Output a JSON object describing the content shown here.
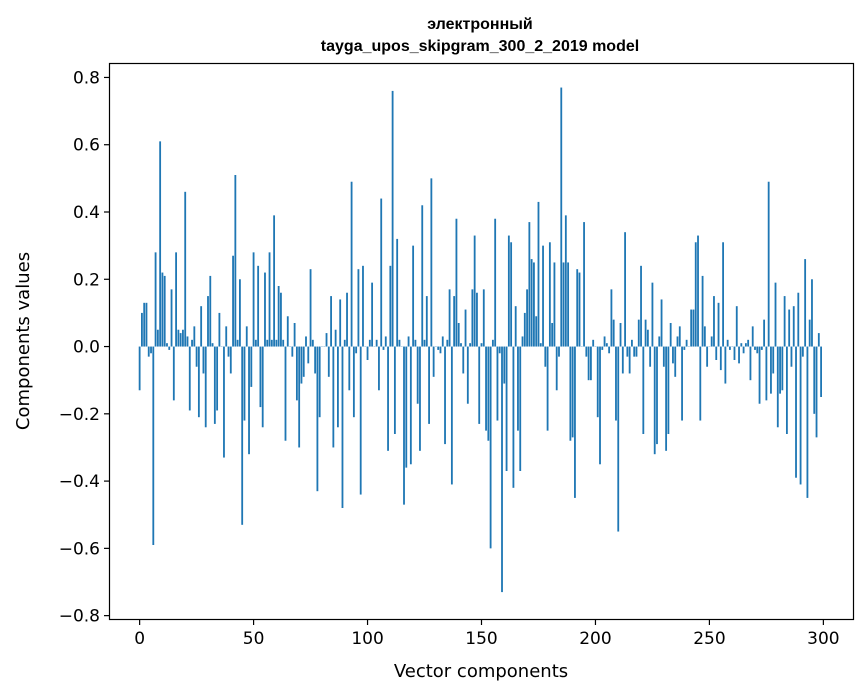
{
  "chart_data": {
    "type": "bar",
    "title": "электронный",
    "subtitle": "tayga_upos_skipgram_300_2_2019 model",
    "xlabel": "Vector components",
    "ylabel": "Components values",
    "xlim": [
      -13,
      313
    ],
    "ylim": [
      -0.81,
      0.84
    ],
    "xticks": [
      0,
      50,
      100,
      150,
      200,
      250,
      300
    ],
    "xtick_labels": [
      "0",
      "50",
      "100",
      "150",
      "200",
      "250",
      "300"
    ],
    "yticks": [
      -0.8,
      -0.6,
      -0.4,
      -0.2,
      0.0,
      0.2,
      0.4,
      0.6,
      0.8
    ],
    "ytick_labels": [
      "−0.8",
      "−0.6",
      "−0.4",
      "−0.2",
      "0.0",
      "0.2",
      "0.4",
      "0.6",
      "0.8"
    ],
    "grid": false,
    "bar_color": "#1f77b4",
    "values": [
      -0.13,
      0.1,
      0.13,
      0.13,
      -0.03,
      -0.02,
      -0.59,
      0.28,
      0.05,
      0.61,
      0.22,
      0.21,
      0.01,
      -0.01,
      0.17,
      -0.16,
      0.28,
      0.05,
      0.04,
      0.05,
      0.46,
      0.03,
      -0.19,
      0.02,
      0.06,
      -0.06,
      -0.21,
      0.12,
      -0.08,
      -0.24,
      0.15,
      0.21,
      0.01,
      -0.23,
      -0.19,
      0.1,
      0.0,
      -0.33,
      0.06,
      -0.03,
      -0.08,
      0.27,
      0.51,
      0.02,
      0.2,
      -0.53,
      -0.22,
      0.06,
      -0.32,
      -0.12,
      0.28,
      0.02,
      0.24,
      -0.18,
      -0.24,
      0.22,
      0.02,
      0.28,
      0.02,
      0.39,
      0.02,
      0.18,
      0.16,
      0.02,
      -0.28,
      0.09,
      0.0,
      -0.03,
      0.07,
      -0.16,
      -0.3,
      -0.11,
      -0.09,
      0.03,
      -0.05,
      0.23,
      0.02,
      -0.08,
      -0.43,
      -0.21,
      0.0,
      0.0,
      0.04,
      -0.09,
      0.15,
      -0.3,
      0.05,
      -0.24,
      0.14,
      -0.48,
      0.02,
      0.16,
      -0.13,
      0.49,
      -0.21,
      -0.02,
      0.23,
      -0.44,
      0.24,
      0.0,
      -0.04,
      0.02,
      0.19,
      0.0,
      0.02,
      -0.13,
      0.44,
      -0.01,
      0.03,
      -0.31,
      0.24,
      0.76,
      -0.26,
      0.32,
      0.02,
      0.0,
      -0.47,
      -0.36,
      0.03,
      -0.35,
      0.3,
      0.02,
      -0.17,
      -0.31,
      0.42,
      0.02,
      0.15,
      -0.23,
      0.5,
      -0.09,
      0.0,
      -0.01,
      -0.02,
      0.03,
      -0.29,
      0.02,
      0.17,
      -0.41,
      0.15,
      0.38,
      0.07,
      0.01,
      -0.08,
      0.11,
      -0.17,
      0.01,
      0.17,
      0.33,
      0.16,
      -0.23,
      0.01,
      0.17,
      -0.25,
      -0.28,
      -0.6,
      0.02,
      0.38,
      -0.22,
      -0.02,
      -0.73,
      -0.11,
      -0.37,
      0.33,
      0.31,
      -0.42,
      0.12,
      -0.25,
      -0.37,
      0.03,
      0.1,
      0.17,
      0.37,
      0.26,
      0.25,
      0.09,
      0.43,
      0.01,
      0.3,
      -0.06,
      -0.25,
      0.31,
      0.07,
      0.25,
      -0.13,
      -0.03,
      0.77,
      0.25,
      0.39,
      0.25,
      -0.28,
      -0.27,
      -0.45,
      0.23,
      0.22,
      0.0,
      0.37,
      -0.03,
      -0.1,
      -0.1,
      0.02,
      0.0,
      -0.21,
      -0.35,
      -0.01,
      0.03,
      0.01,
      -0.02,
      0.17,
      0.08,
      -0.22,
      -0.55,
      0.07,
      -0.08,
      0.34,
      -0.03,
      -0.08,
      0.02,
      -0.03,
      -0.03,
      0.08,
      0.24,
      -0.26,
      0.08,
      0.05,
      -0.06,
      0.19,
      -0.32,
      -0.29,
      0.03,
      0.14,
      -0.06,
      -0.31,
      -0.26,
      0.07,
      -0.05,
      -0.09,
      0.03,
      0.06,
      -0.22,
      -0.01,
      0.02,
      0.0,
      0.11,
      0.11,
      0.31,
      0.33,
      -0.22,
      0.21,
      0.06,
      -0.06,
      0.0,
      0.03,
      0.15,
      -0.04,
      0.13,
      -0.07,
      0.31,
      -0.11,
      0.02,
      -0.01,
      0.0,
      -0.04,
      0.12,
      -0.05,
      0.01,
      -0.02,
      0.01,
      0.02,
      -0.1,
      0.06,
      -0.01,
      -0.02,
      -0.17,
      -0.01,
      0.08,
      -0.16,
      0.49,
      -0.14,
      -0.08,
      0.19,
      -0.24,
      -0.14,
      -0.13,
      0.15,
      -0.26,
      0.11,
      -0.06,
      0.12,
      -0.39,
      0.16,
      -0.41,
      -0.03,
      0.26,
      -0.45,
      0.08,
      0.2,
      -0.2,
      -0.27,
      0.04,
      -0.15
    ]
  }
}
